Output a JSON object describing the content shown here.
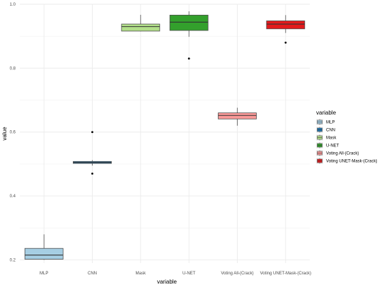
{
  "chart_data": {
    "type": "box",
    "xlabel": "variable",
    "ylabel": "value",
    "ylim": [
      0.19,
      1.0
    ],
    "yticks": [
      0.2,
      0.4,
      0.6,
      0.8,
      1.0
    ],
    "ytick_labels": [
      "0.2",
      "0.4",
      "0.6",
      "0.8",
      "1.0"
    ],
    "grid": true,
    "legend": {
      "title": "variable",
      "position": "right"
    },
    "categories": [
      "MLP",
      "CNN",
      "Mask",
      "U-NET",
      "Voting All-(Crack)",
      "Voting UNET-Mask-(Crack)"
    ],
    "colors": [
      "#a6cee3",
      "#1f78b4",
      "#b2df8a",
      "#33a02c",
      "#fb9a99",
      "#e31a1c"
    ],
    "series": [
      {
        "name": "MLP",
        "whisker_low": 0.2,
        "q1": 0.202,
        "median": 0.215,
        "q3": 0.236,
        "whisker_high": 0.28,
        "outliers": []
      },
      {
        "name": "CNN",
        "whisker_low": 0.495,
        "q1": 0.502,
        "median": 0.505,
        "q3": 0.508,
        "whisker_high": 0.512,
        "outliers": [
          0.47,
          0.6
        ]
      },
      {
        "name": "Mask",
        "whisker_low": 0.915,
        "q1": 0.916,
        "median": 0.93,
        "q3": 0.938,
        "whisker_high": 0.967,
        "outliers": []
      },
      {
        "name": "U-NET",
        "whisker_low": 0.898,
        "q1": 0.918,
        "median": 0.944,
        "q3": 0.966,
        "whisker_high": 0.978,
        "outliers": [
          0.83
        ]
      },
      {
        "name": "Voting All-(Crack)",
        "whisker_low": 0.62,
        "q1": 0.641,
        "median": 0.652,
        "q3": 0.66,
        "whisker_high": 0.676,
        "outliers": []
      },
      {
        "name": "Voting UNET-Mask-(Crack)",
        "whisker_low": 0.91,
        "q1": 0.923,
        "median": 0.938,
        "q3": 0.948,
        "whisker_high": 0.966,
        "outliers": [
          0.88
        ]
      }
    ]
  }
}
